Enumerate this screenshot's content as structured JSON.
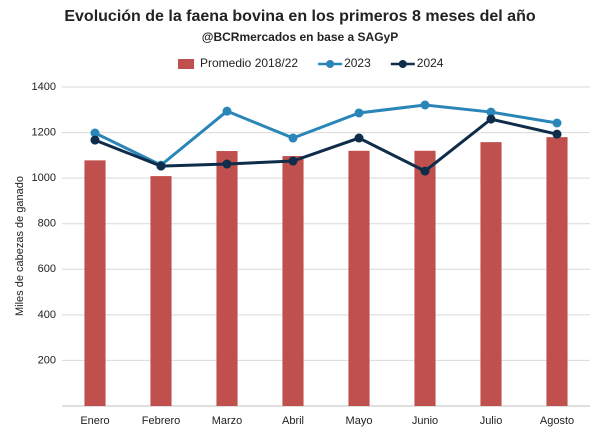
{
  "chart_data": {
    "type": "bar",
    "title": "Evolución de la faena bovina en los primeros 8 meses del año",
    "subtitle": "@BCRmercados en base a SAGyP",
    "y_label": "Miles de cabezas de ganado",
    "categories": [
      "Enero",
      "Febrero",
      "Marzo",
      "Abril",
      "Mayo",
      "Junio",
      "Julio",
      "Agosto"
    ],
    "series": [
      {
        "name": "Promedio 2018/22",
        "type": "bar",
        "color": "#c0504d",
        "values": [
          1078,
          1009,
          1119,
          1097,
          1120,
          1120,
          1158,
          1180
        ]
      },
      {
        "name": "2023",
        "type": "line",
        "color": "#2a86b8",
        "values": [
          1198,
          1057,
          1294,
          1176,
          1286,
          1321,
          1290,
          1242
        ]
      },
      {
        "name": "2024",
        "type": "line",
        "color": "#0f2d4a",
        "values": [
          1167,
          1053,
          1062,
          1075,
          1176,
          1031,
          1259,
          1193
        ]
      }
    ],
    "ylim": [
      0,
      1400
    ],
    "yticks": [
      200,
      400,
      600,
      800,
      1000,
      1200,
      1400
    ],
    "grid": true
  }
}
